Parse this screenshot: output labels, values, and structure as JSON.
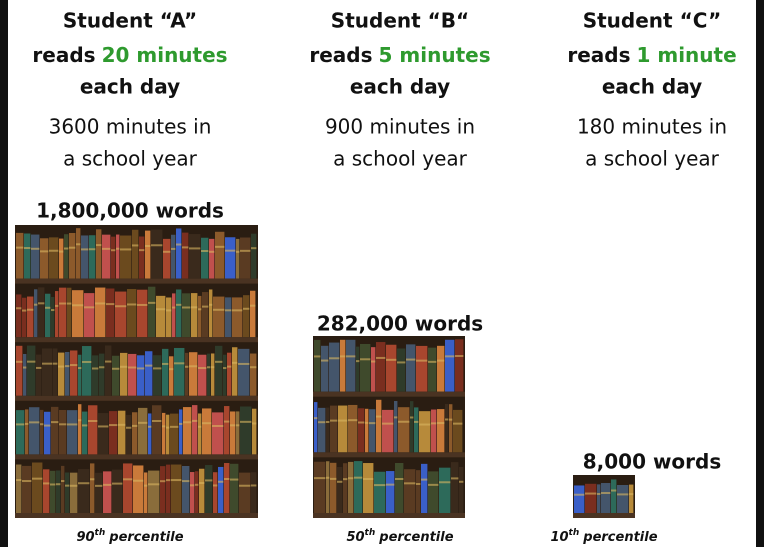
{
  "columns": [
    {
      "student": "Student “A”",
      "reads_prefix": "reads",
      "reads_amount": "20 minutes",
      "frequency": "each day",
      "year_line1": "3600 minutes in",
      "year_line2": "a school year",
      "words": "1,800,000 words",
      "percentile_number": "90",
      "percentile_suffix": "th",
      "percentile_word": "percentile"
    },
    {
      "student": "Student “B“",
      "reads_prefix": "reads",
      "reads_amount": "5 minutes",
      "frequency": "each day",
      "year_line1": "900 minutes in",
      "year_line2": "a school year",
      "words": "282,000 words",
      "percentile_number": "50",
      "percentile_suffix": "th",
      "percentile_word": "percentile"
    },
    {
      "student": "Student “C”",
      "reads_prefix": "reads",
      "reads_amount": "1 minute",
      "frequency": "each day",
      "year_line1": "180 minutes in",
      "year_line2": "a school year",
      "words": "8,000 words",
      "percentile_number": "10",
      "percentile_suffix": "th",
      "percentile_word": "percentile"
    }
  ]
}
